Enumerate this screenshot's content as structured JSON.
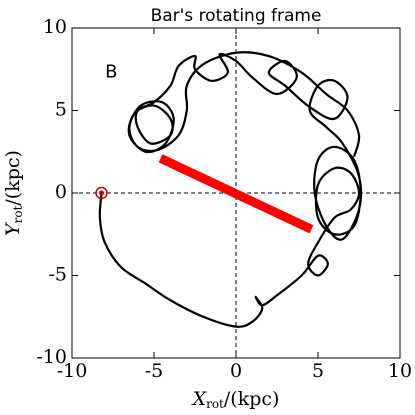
{
  "chart_data": {
    "type": "line",
    "title": "Bar's rotating frame",
    "annotation": {
      "text": "B",
      "x": -7.6,
      "y": 7.3
    },
    "xlabel": {
      "main": "X",
      "sub": "rot",
      "rest": "/(kpc)"
    },
    "ylabel": {
      "main": "Y",
      "sub": "rot",
      "rest": "/(kpc)"
    },
    "xlim": [
      -10,
      10
    ],
    "ylim": [
      -10,
      10
    ],
    "xticks": [
      -10,
      -5,
      0,
      5,
      10
    ],
    "yticks": [
      -10,
      -5,
      0,
      5,
      10
    ],
    "zero_lines": true,
    "series": [
      {
        "name": "orbit",
        "color": "#000000",
        "width": 2.2,
        "x": [
          -8.2,
          -8.3,
          -8,
          -7,
          -5.5,
          -4,
          -2,
          0,
          1,
          1.6,
          1.2,
          1.6,
          2.5,
          4,
          5,
          5.6,
          5,
          4.4,
          5,
          6,
          7,
          7.5,
          7,
          6,
          5,
          5,
          6,
          7.2,
          7.6,
          7.2,
          6,
          5,
          4.8,
          5.5,
          6.5,
          7.5,
          7.5,
          6.5,
          5.5,
          4.5,
          5,
          6,
          6.8,
          6,
          4.5,
          3,
          2,
          3,
          3.7,
          2.5,
          1,
          0,
          -1,
          -0.5,
          -1.5,
          -2.5,
          -2.5,
          -3.5,
          -4,
          -5,
          -6,
          -6,
          -5.2,
          -4,
          -4,
          -5,
          -6.2,
          -6.5,
          -5.5,
          -4.3,
          -3.8,
          -4.5,
          -5.8,
          -6.5,
          -6,
          -4.8,
          -3.5,
          -3,
          -3,
          -2,
          0,
          2,
          4,
          5.5,
          6.8,
          7.5,
          7.2
        ],
        "y": [
          0,
          -1.5,
          -3,
          -4.5,
          -5.5,
          -6.5,
          -7.5,
          -8.1,
          -7.8,
          -7,
          -6.3,
          -6.8,
          -6.2,
          -5,
          -3.8,
          -4.3,
          -5,
          -4.3,
          -3,
          -1.5,
          -1,
          0,
          1.2,
          1.5,
          0.5,
          -1.5,
          -2.5,
          -2,
          0,
          2,
          2.8,
          2,
          0,
          -2,
          -2.8,
          -1,
          1,
          3,
          4,
          5,
          6.5,
          6.8,
          5.8,
          4.5,
          5.2,
          6.5,
          7.3,
          8,
          7,
          6,
          7,
          8,
          8.4,
          7.3,
          6.8,
          7.5,
          8.3,
          7.7,
          6.5,
          5.5,
          5,
          4,
          3,
          3.5,
          4.5,
          5.3,
          4.8,
          3.5,
          2.5,
          3,
          4.5,
          5.5,
          5.3,
          4,
          2.8,
          2.6,
          3.5,
          5,
          6.5,
          7.8,
          8.5,
          8.3,
          7.3,
          6,
          5,
          3.5,
          2.2
        ]
      },
      {
        "name": "bar",
        "color": "#ff0000",
        "width": 9,
        "x": [
          -4.6,
          4.6
        ],
        "y": [
          2.1,
          -2.2
        ]
      }
    ],
    "start": {
      "x": -8.2,
      "y": 0,
      "color": "#cc0000"
    }
  }
}
